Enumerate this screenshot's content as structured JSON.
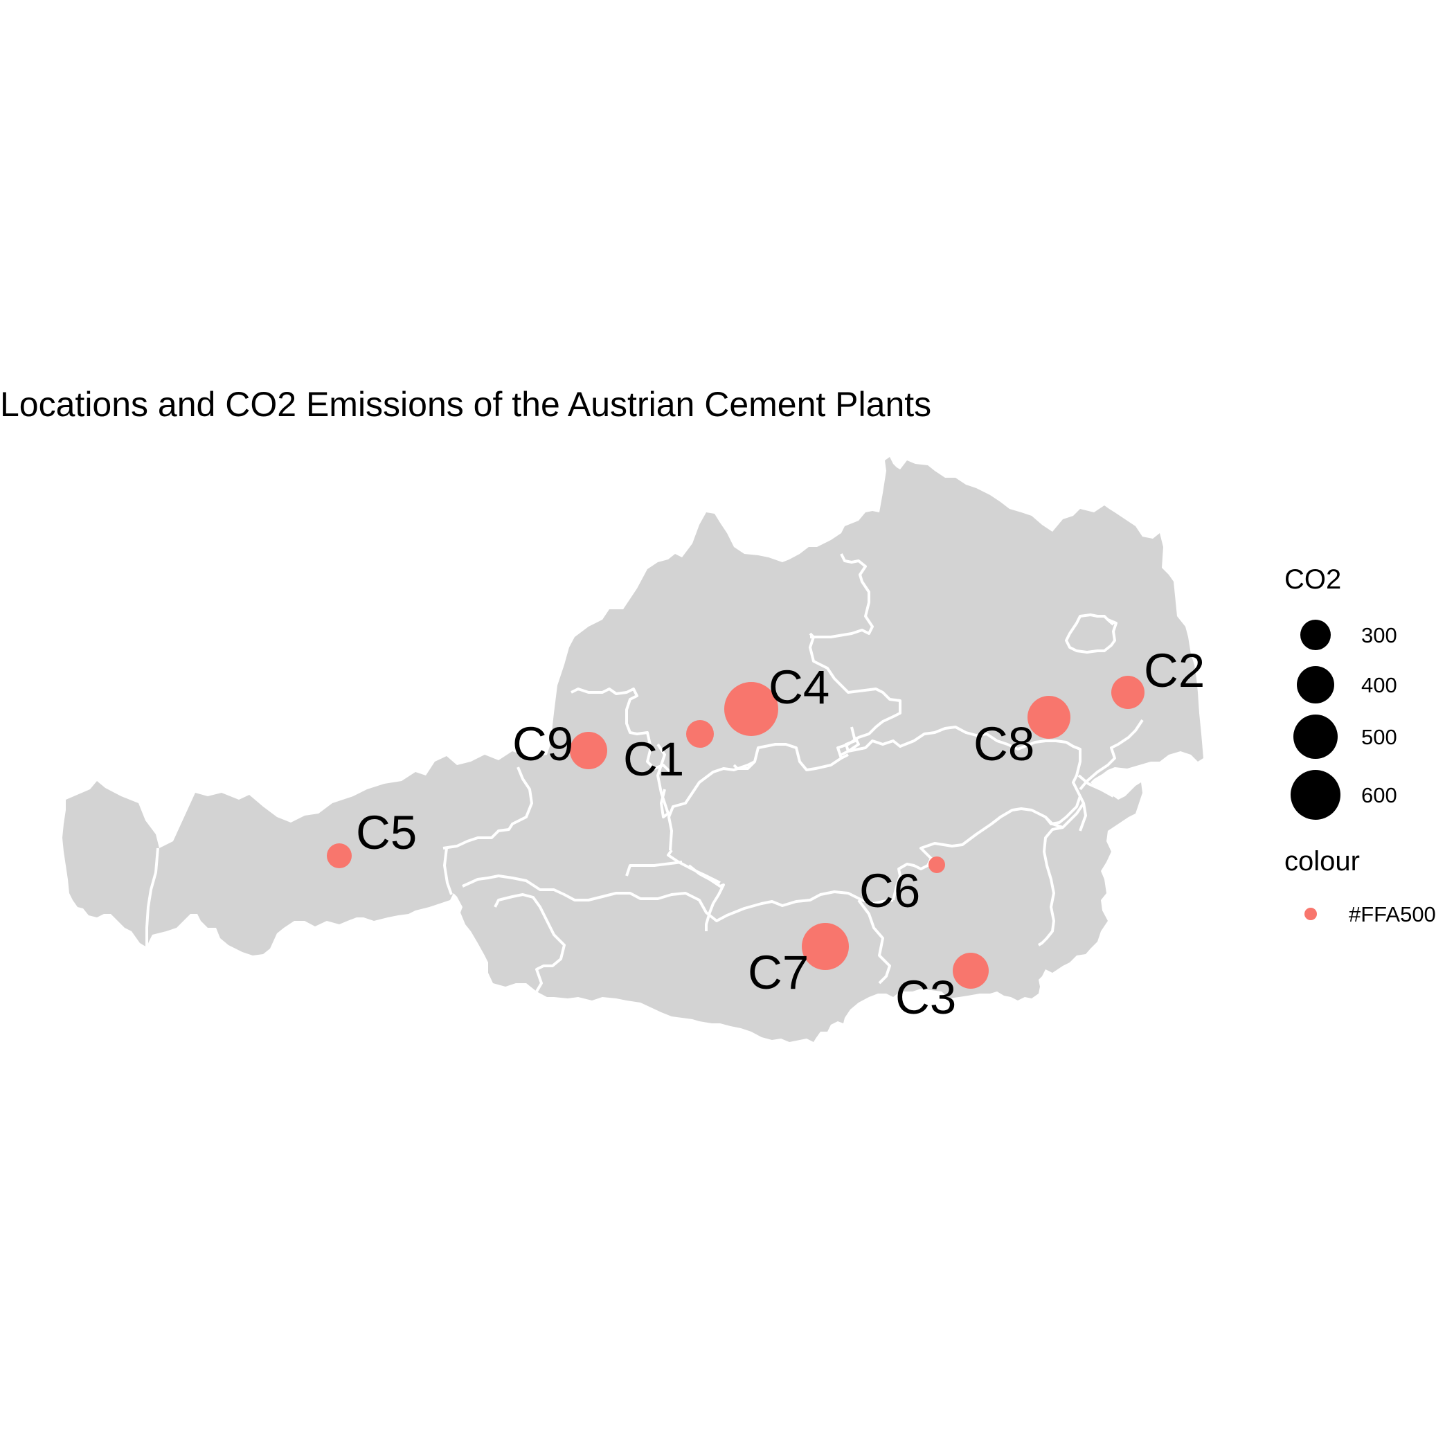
{
  "title": "Locations and CO2 Emissions of the Austrian Cement Plants",
  "map": {
    "region": "Austria",
    "land_color": "#d3d3d3",
    "border_color": "#ffffff",
    "point_color": "#f8766d"
  },
  "plants": [
    {
      "id": "C1",
      "label": "C1"
    },
    {
      "id": "C2",
      "label": "C2"
    },
    {
      "id": "C3",
      "label": "C3"
    },
    {
      "id": "C4",
      "label": "C4"
    },
    {
      "id": "C5",
      "label": "C5"
    },
    {
      "id": "C6",
      "label": "C6"
    },
    {
      "id": "C7",
      "label": "C7"
    },
    {
      "id": "C8",
      "label": "C8"
    },
    {
      "id": "C9",
      "label": "C9"
    }
  ],
  "legend": {
    "size_title": "CO2",
    "size_entries": [
      {
        "label": "300",
        "value": 300
      },
      {
        "label": "400",
        "value": 400
      },
      {
        "label": "500",
        "value": 500
      },
      {
        "label": "600",
        "value": 600
      }
    ],
    "size_symbol_color": "#000000",
    "colour_title": "colour",
    "colour_entries": [
      {
        "label": "#FFA500",
        "color": "#f8766d"
      }
    ]
  }
}
